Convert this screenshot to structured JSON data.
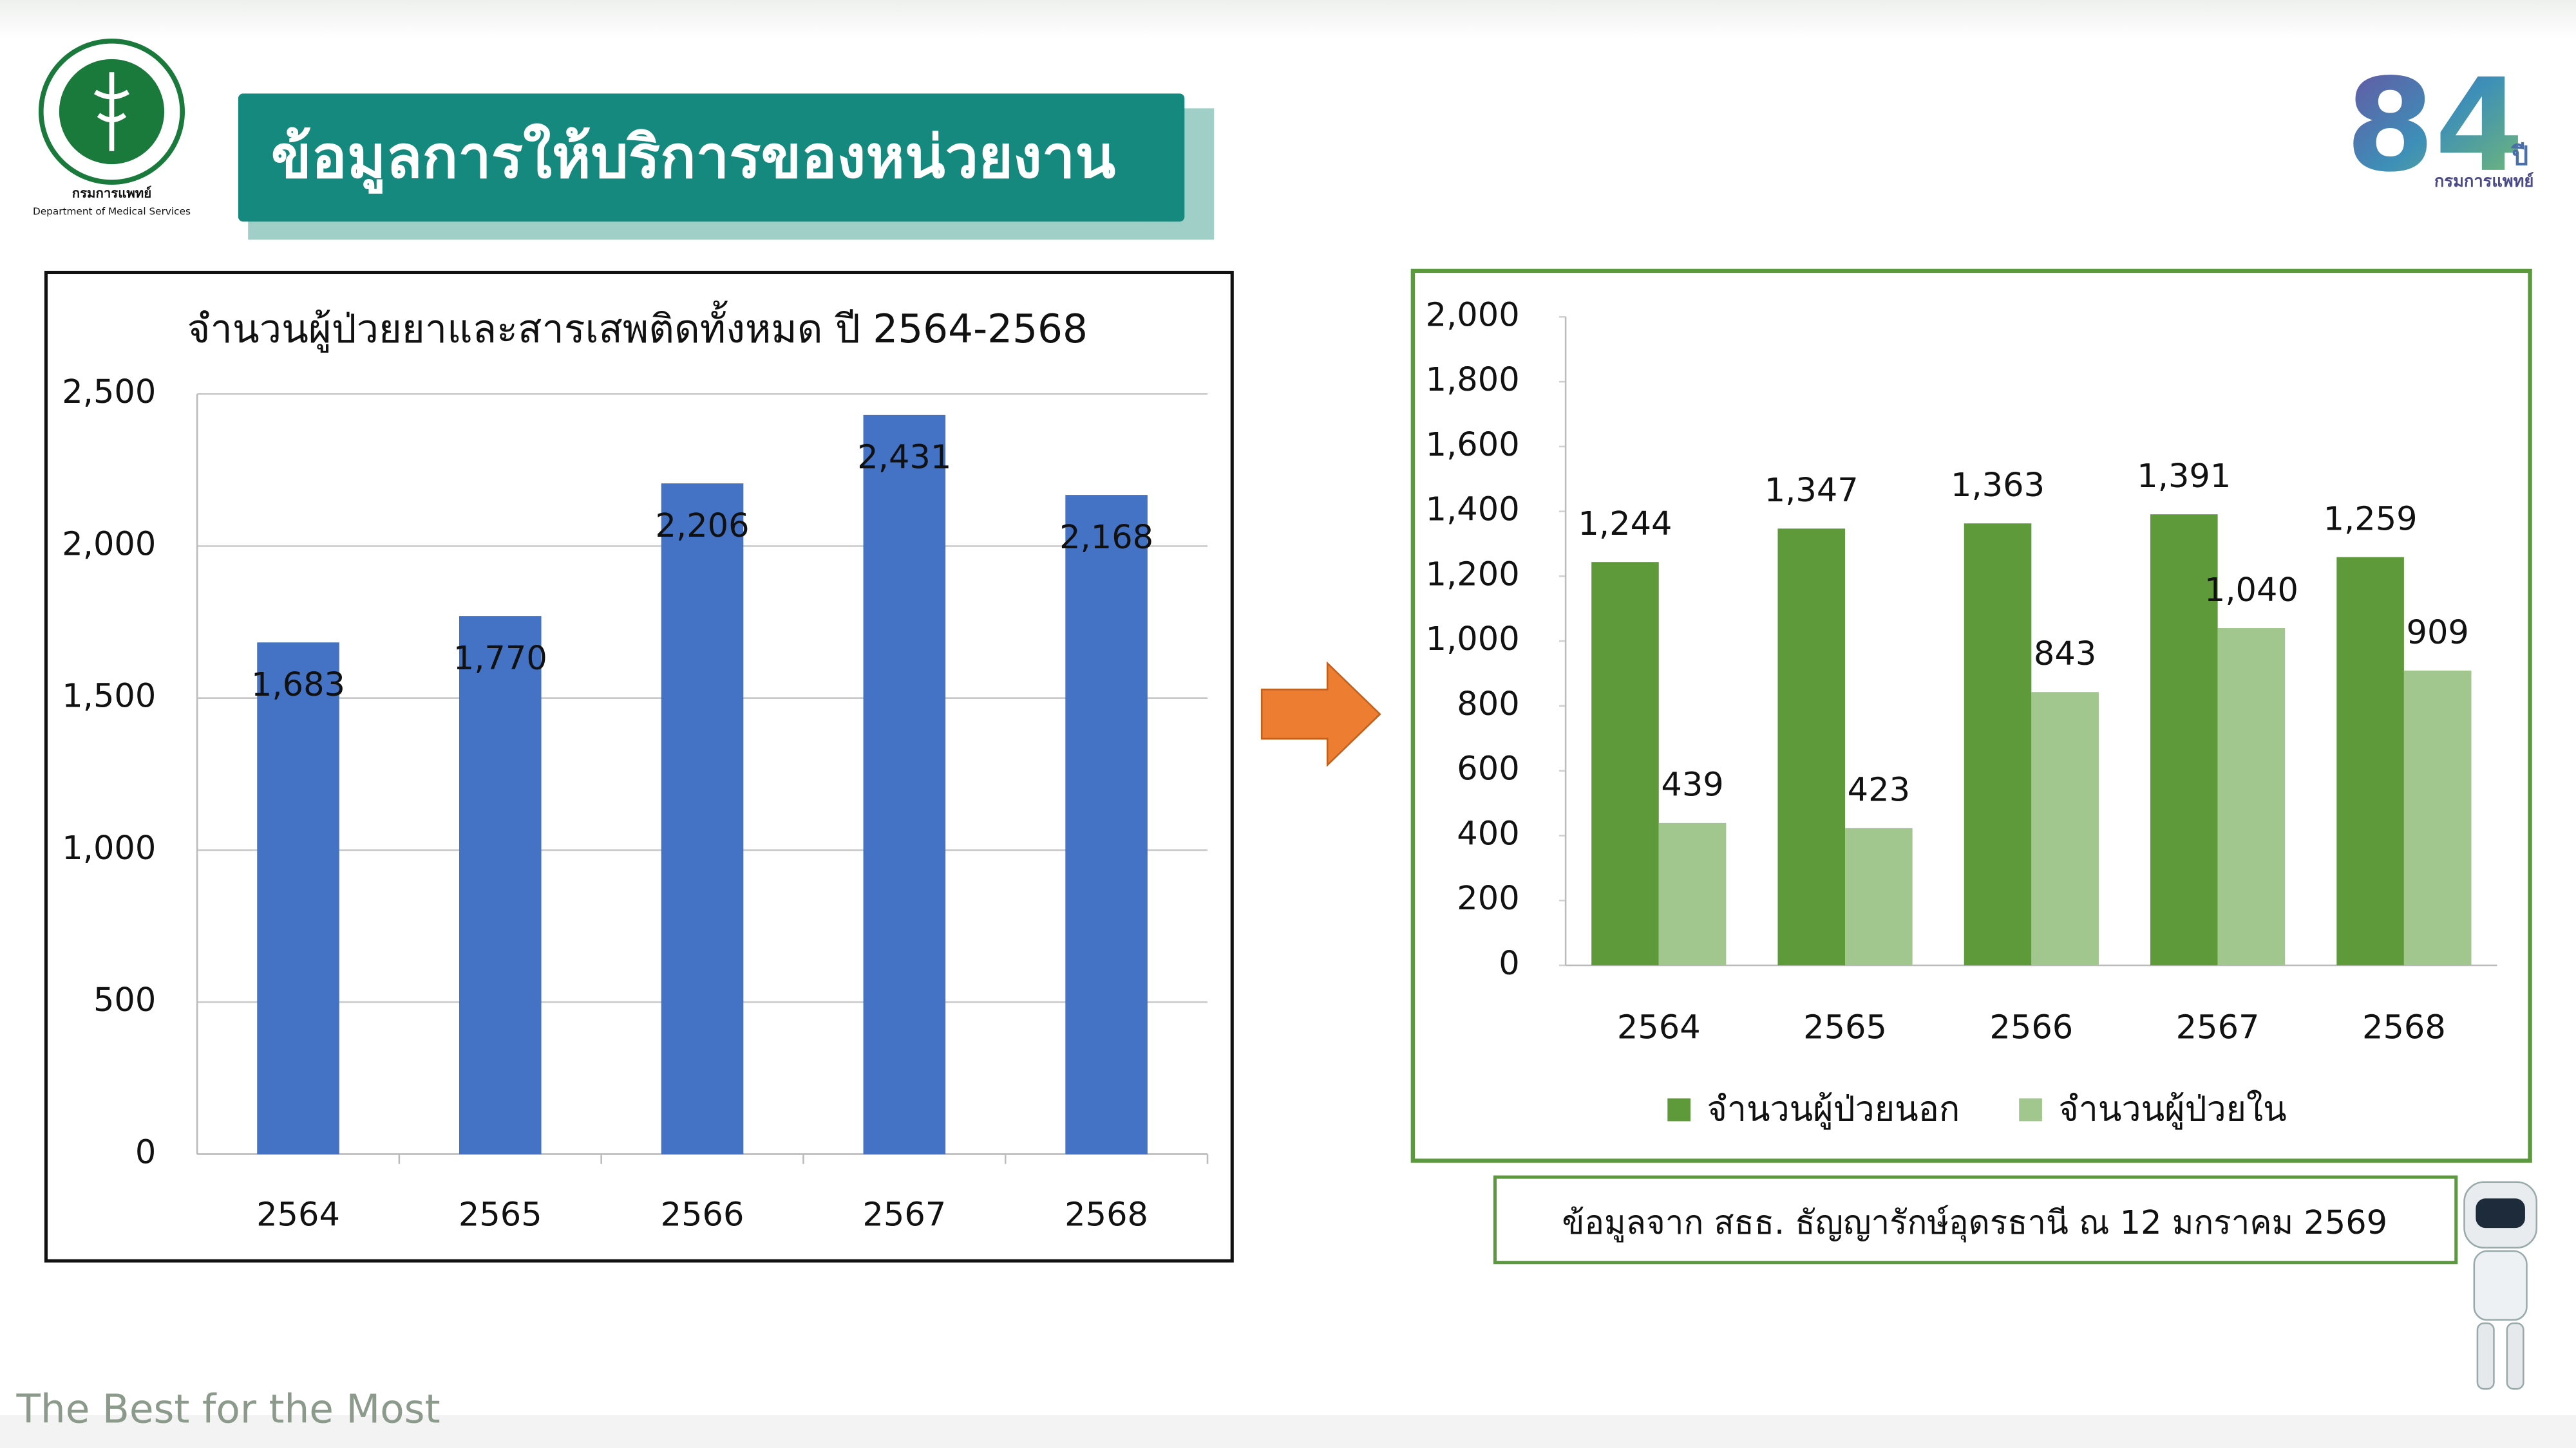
{
  "header": {
    "title": "ข้อมูลการให้บริการของหน่วยงาน",
    "logo_left": "กรมการแพทย์",
    "logo_left_en": "Department of Medical Services",
    "logo_right_number": "84",
    "logo_right_unit": "ปี",
    "logo_right_name": "กรมการแพทย์"
  },
  "chart_data": [
    {
      "type": "bar",
      "title": "จำนวนผู้ป่วยยาและสารเสพติดทั้งหมด ปี 2564-2568",
      "categories": [
        "2564",
        "2565",
        "2566",
        "2567",
        "2568"
      ],
      "values": [
        1683,
        1770,
        2206,
        2431,
        2168
      ],
      "value_labels": [
        "1,683",
        "1,770",
        "2,206",
        "2,431",
        "2,168"
      ],
      "color": "#4472c4",
      "ylim": [
        0,
        2500
      ],
      "yticks": [
        0,
        500,
        {
          "value": 1000,
          "label": "1,000"
        },
        {
          "value": 1500,
          "label": "1,500"
        },
        {
          "value": 2000,
          "label": "2,000"
        },
        {
          "value": 2500,
          "label": "2,500"
        }
      ],
      "grid": true
    },
    {
      "type": "grouped_bar",
      "categories": [
        "2564",
        "2565",
        "2566",
        "2567",
        "2568"
      ],
      "series": [
        {
          "name": "จำนวนผู้ป่วยนอก",
          "color": "#5e9a3a",
          "values": [
            1244,
            1347,
            1363,
            1391,
            1259
          ],
          "value_labels": [
            "1,244",
            "1,347",
            "1,363",
            "1,391",
            "1,259"
          ]
        },
        {
          "name": "จำนวนผู้ป่วยใน",
          "color": "#a2c78e",
          "values": [
            439,
            423,
            843,
            1040,
            909
          ],
          "value_labels": [
            "439",
            "423",
            "843",
            "1,040",
            "909"
          ]
        }
      ],
      "ylim": [
        0,
        2000
      ],
      "yticks": [
        0,
        200,
        400,
        600,
        800,
        {
          "value": 1000,
          "label": "1,000"
        },
        {
          "value": 1200,
          "label": "1,200"
        },
        {
          "value": 1400,
          "label": "1,400"
        },
        {
          "value": 1600,
          "label": "1,600"
        },
        {
          "value": 1800,
          "label": "1,800"
        },
        {
          "value": 2000,
          "label": "2,000"
        }
      ],
      "grid": false,
      "legend": "bottom"
    }
  ],
  "source_note": "ข้อมูลจาก สธธ. ธัญญารักษ์อุดรธานี ณ 12 มกราคม 2569",
  "footer": "The Best for the Most"
}
